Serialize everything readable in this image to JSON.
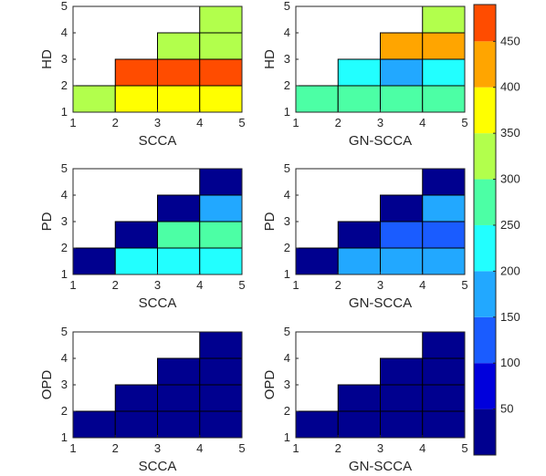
{
  "chart_data": [
    {
      "type": "heatmap",
      "xlabel": "SCCA",
      "ylabel": "HD",
      "xticks": [
        "1",
        "2",
        "3",
        "4",
        "5"
      ],
      "yticks": [
        "1",
        "2",
        "3",
        "4",
        "5"
      ],
      "cells": [
        {
          "x": 1,
          "y": 1,
          "value": 330
        },
        {
          "x": 2,
          "y": 1,
          "value": 360
        },
        {
          "x": 3,
          "y": 1,
          "value": 360
        },
        {
          "x": 4,
          "y": 1,
          "value": 360
        },
        {
          "x": 2,
          "y": 2,
          "value": 460
        },
        {
          "x": 3,
          "y": 2,
          "value": 460
        },
        {
          "x": 4,
          "y": 2,
          "value": 460
        },
        {
          "x": 3,
          "y": 3,
          "value": 320
        },
        {
          "x": 4,
          "y": 3,
          "value": 320
        },
        {
          "x": 4,
          "y": 4,
          "value": 320
        }
      ]
    },
    {
      "type": "heatmap",
      "xlabel": "GN-SCCA",
      "ylabel": "HD",
      "xticks": [
        "1",
        "2",
        "3",
        "4",
        "5"
      ],
      "yticks": [
        "1",
        "2",
        "3",
        "4",
        "5"
      ],
      "cells": [
        {
          "x": 1,
          "y": 1,
          "value": 270
        },
        {
          "x": 2,
          "y": 1,
          "value": 270
        },
        {
          "x": 3,
          "y": 1,
          "value": 270
        },
        {
          "x": 4,
          "y": 1,
          "value": 270
        },
        {
          "x": 2,
          "y": 2,
          "value": 220
        },
        {
          "x": 3,
          "y": 2,
          "value": 170
        },
        {
          "x": 4,
          "y": 2,
          "value": 220
        },
        {
          "x": 3,
          "y": 3,
          "value": 410
        },
        {
          "x": 4,
          "y": 3,
          "value": 410
        },
        {
          "x": 4,
          "y": 4,
          "value": 320
        }
      ]
    },
    {
      "type": "heatmap",
      "xlabel": "SCCA",
      "ylabel": "PD",
      "xticks": [
        "1",
        "2",
        "3",
        "4",
        "5"
      ],
      "yticks": [
        "1",
        "2",
        "3",
        "4",
        "5"
      ],
      "cells": [
        {
          "x": 1,
          "y": 1,
          "value": 20
        },
        {
          "x": 2,
          "y": 1,
          "value": 220
        },
        {
          "x": 3,
          "y": 1,
          "value": 220
        },
        {
          "x": 4,
          "y": 1,
          "value": 220
        },
        {
          "x": 2,
          "y": 2,
          "value": 20
        },
        {
          "x": 3,
          "y": 2,
          "value": 270
        },
        {
          "x": 4,
          "y": 2,
          "value": 270
        },
        {
          "x": 3,
          "y": 3,
          "value": 20
        },
        {
          "x": 4,
          "y": 3,
          "value": 170
        },
        {
          "x": 4,
          "y": 4,
          "value": 20
        }
      ]
    },
    {
      "type": "heatmap",
      "xlabel": "GN-SCCA",
      "ylabel": "PD",
      "xticks": [
        "1",
        "2",
        "3",
        "4",
        "5"
      ],
      "yticks": [
        "1",
        "2",
        "3",
        "4",
        "5"
      ],
      "cells": [
        {
          "x": 1,
          "y": 1,
          "value": 20
        },
        {
          "x": 2,
          "y": 1,
          "value": 170
        },
        {
          "x": 3,
          "y": 1,
          "value": 170
        },
        {
          "x": 4,
          "y": 1,
          "value": 170
        },
        {
          "x": 2,
          "y": 2,
          "value": 20
        },
        {
          "x": 3,
          "y": 2,
          "value": 120
        },
        {
          "x": 4,
          "y": 2,
          "value": 120
        },
        {
          "x": 3,
          "y": 3,
          "value": 20
        },
        {
          "x": 4,
          "y": 3,
          "value": 170
        },
        {
          "x": 4,
          "y": 4,
          "value": 20
        }
      ]
    },
    {
      "type": "heatmap",
      "xlabel": "SCCA",
      "ylabel": "OPD",
      "xticks": [
        "1",
        "2",
        "3",
        "4",
        "5"
      ],
      "yticks": [
        "1",
        "2",
        "3",
        "4",
        "5"
      ],
      "cells": [
        {
          "x": 1,
          "y": 1,
          "value": 20
        },
        {
          "x": 2,
          "y": 1,
          "value": 20
        },
        {
          "x": 3,
          "y": 1,
          "value": 20
        },
        {
          "x": 4,
          "y": 1,
          "value": 20
        },
        {
          "x": 2,
          "y": 2,
          "value": 20
        },
        {
          "x": 3,
          "y": 2,
          "value": 20
        },
        {
          "x": 4,
          "y": 2,
          "value": 20
        },
        {
          "x": 3,
          "y": 3,
          "value": 20
        },
        {
          "x": 4,
          "y": 3,
          "value": 20
        },
        {
          "x": 4,
          "y": 4,
          "value": 20
        }
      ]
    },
    {
      "type": "heatmap",
      "xlabel": "GN-SCCA",
      "ylabel": "OPD",
      "xticks": [
        "1",
        "2",
        "3",
        "4",
        "5"
      ],
      "yticks": [
        "1",
        "2",
        "3",
        "4",
        "5"
      ],
      "cells": [
        {
          "x": 1,
          "y": 1,
          "value": 20
        },
        {
          "x": 2,
          "y": 1,
          "value": 20
        },
        {
          "x": 3,
          "y": 1,
          "value": 20
        },
        {
          "x": 4,
          "y": 1,
          "value": 20
        },
        {
          "x": 2,
          "y": 2,
          "value": 20
        },
        {
          "x": 3,
          "y": 2,
          "value": 20
        },
        {
          "x": 4,
          "y": 2,
          "value": 20
        },
        {
          "x": 3,
          "y": 3,
          "value": 20
        },
        {
          "x": 4,
          "y": 3,
          "value": 20
        },
        {
          "x": 4,
          "y": 4,
          "value": 20
        }
      ]
    }
  ],
  "colorbar": {
    "range": [
      0,
      490
    ],
    "ticks": [
      "50",
      "100",
      "150",
      "200",
      "250",
      "300",
      "350",
      "400",
      "450"
    ],
    "tick_values": [
      50,
      100,
      150,
      200,
      250,
      300,
      350,
      400,
      450
    ],
    "bands": [
      {
        "from": 0,
        "to": 50,
        "color": "#00008f"
      },
      {
        "from": 50,
        "to": 100,
        "color": "#0000dc"
      },
      {
        "from": 100,
        "to": 150,
        "color": "#1a5cff"
      },
      {
        "from": 150,
        "to": 200,
        "color": "#22a8ff"
      },
      {
        "from": 200,
        "to": 250,
        "color": "#22ffff"
      },
      {
        "from": 250,
        "to": 300,
        "color": "#4cffa5"
      },
      {
        "from": 300,
        "to": 350,
        "color": "#b2ff4c"
      },
      {
        "from": 350,
        "to": 400,
        "color": "#ffff00"
      },
      {
        "from": 400,
        "to": 450,
        "color": "#ffa500"
      },
      {
        "from": 450,
        "to": 490,
        "color": "#ff4c00"
      }
    ]
  }
}
